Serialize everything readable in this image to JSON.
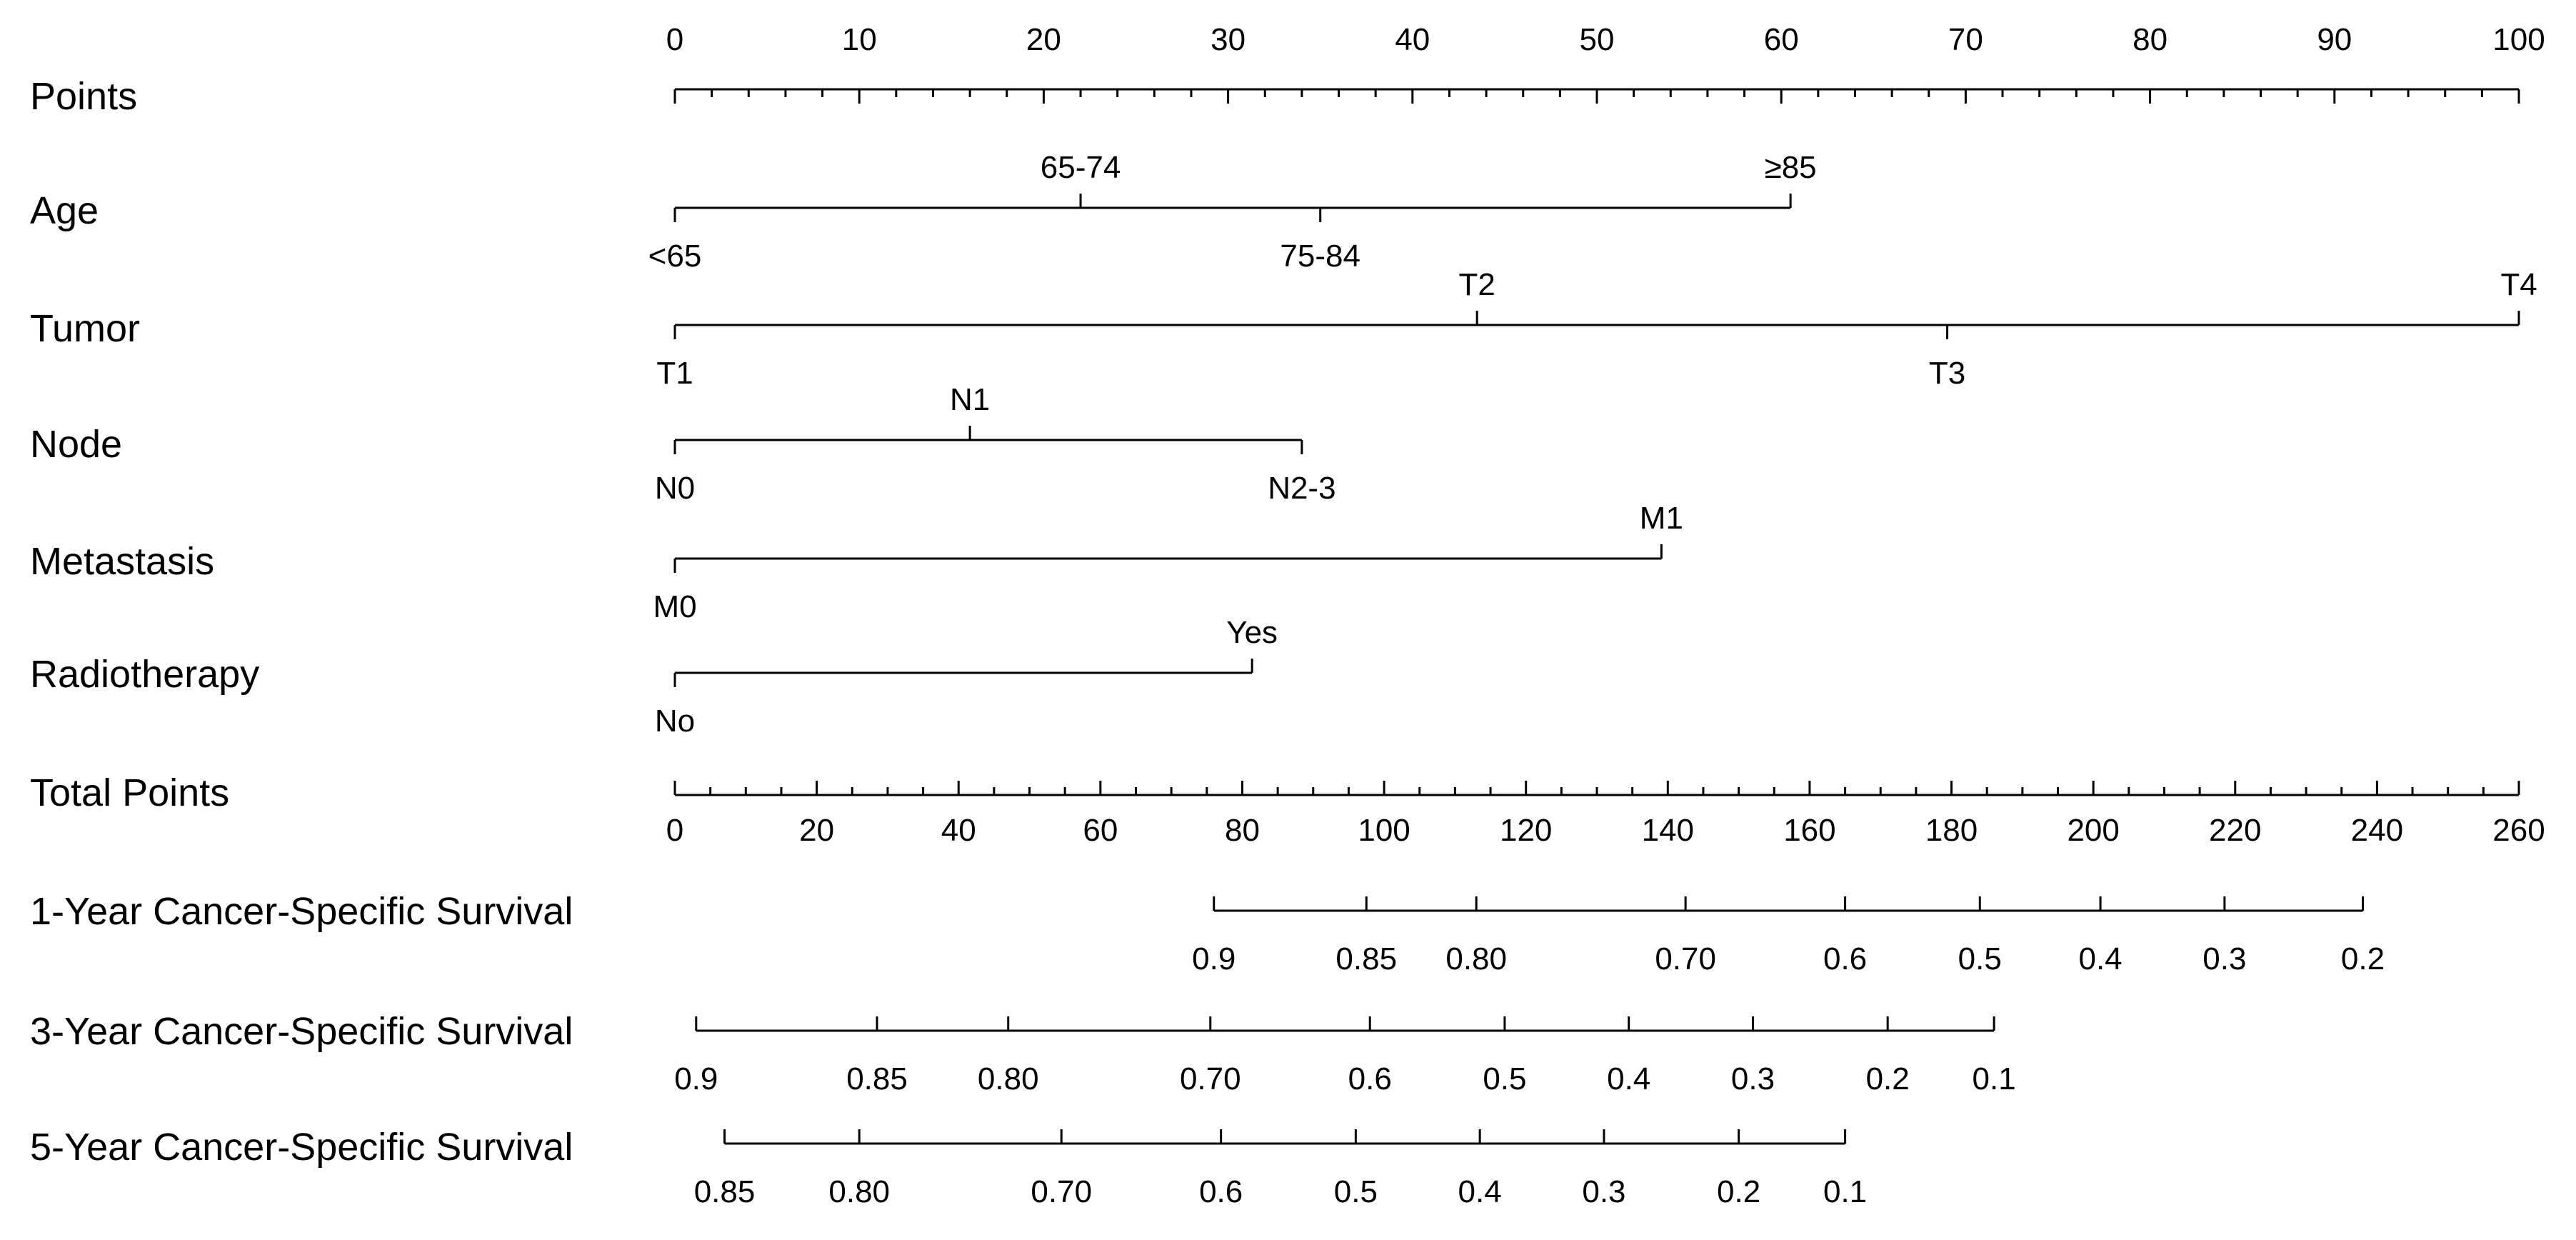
{
  "chart_data": {
    "type": "nomogram",
    "rows": [
      {
        "key": "points",
        "label": "Points",
        "kind": "scale",
        "min": 0,
        "max": 100,
        "major_ticks": [
          0,
          10,
          20,
          30,
          40,
          50,
          60,
          70,
          80,
          90,
          100
        ],
        "minor_step": 2,
        "tick_labels": [
          "0",
          "10",
          "20",
          "30",
          "40",
          "50",
          "60",
          "70",
          "80",
          "90",
          "100"
        ],
        "label_side": "above"
      },
      {
        "key": "age",
        "label": "Age",
        "kind": "factor",
        "levels": [
          {
            "label": "<65",
            "points": 0,
            "label_side": "below"
          },
          {
            "label": "65-74",
            "points": 22,
            "label_side": "above"
          },
          {
            "label": "75-84",
            "points": 35,
            "label_side": "below"
          },
          {
            "label": "≥85",
            "points": 60.5,
            "label_side": "above"
          }
        ]
      },
      {
        "key": "tumor",
        "label": "Tumor",
        "kind": "factor",
        "levels": [
          {
            "label": "T1",
            "points": 0,
            "label_side": "below"
          },
          {
            "label": "T2",
            "points": 43.5,
            "label_side": "above"
          },
          {
            "label": "T3",
            "points": 69,
            "label_side": "below"
          },
          {
            "label": "T4",
            "points": 100,
            "label_side": "above"
          }
        ]
      },
      {
        "key": "node",
        "label": "Node",
        "kind": "factor",
        "levels": [
          {
            "label": "N0",
            "points": 0,
            "label_side": "below"
          },
          {
            "label": "N1",
            "points": 16,
            "label_side": "above"
          },
          {
            "label": "N2-3",
            "points": 34,
            "label_side": "below"
          }
        ]
      },
      {
        "key": "metastasis",
        "label": "Metastasis",
        "kind": "factor",
        "levels": [
          {
            "label": "M0",
            "points": 0,
            "label_side": "below"
          },
          {
            "label": "M1",
            "points": 53.5,
            "label_side": "above"
          }
        ]
      },
      {
        "key": "radiotherapy",
        "label": "Radiotherapy",
        "kind": "factor",
        "levels": [
          {
            "label": "No",
            "points": 0,
            "label_side": "below"
          },
          {
            "label": "Yes",
            "points": 31.3,
            "label_side": "above"
          }
        ]
      },
      {
        "key": "total_points",
        "label": "Total Points",
        "kind": "scale",
        "min": 0,
        "max": 260,
        "major_ticks": [
          0,
          20,
          40,
          60,
          80,
          100,
          120,
          140,
          160,
          180,
          200,
          220,
          240,
          260
        ],
        "minor_step": 5,
        "tick_labels": [
          "0",
          "20",
          "40",
          "60",
          "80",
          "100",
          "120",
          "140",
          "160",
          "180",
          "200",
          "220",
          "240",
          "260"
        ],
        "label_side": "below"
      },
      {
        "key": "survival_1y",
        "label": "1-Year Cancer-Specific Survival",
        "kind": "probability",
        "ticks": [
          {
            "label": "0.9",
            "total_points": 76
          },
          {
            "label": "0.85",
            "total_points": 97.5
          },
          {
            "label": "0.80",
            "total_points": 113
          },
          {
            "label": "0.70",
            "total_points": 142.5
          },
          {
            "label": "0.6",
            "total_points": 165
          },
          {
            "label": "0.5",
            "total_points": 184
          },
          {
            "label": "0.4",
            "total_points": 201
          },
          {
            "label": "0.3",
            "total_points": 218.5
          },
          {
            "label": "0.2",
            "total_points": 238
          }
        ]
      },
      {
        "key": "survival_3y",
        "label": "3-Year Cancer-Specific Survival",
        "kind": "probability",
        "ticks": [
          {
            "label": "0.9",
            "total_points": 3
          },
          {
            "label": "0.85",
            "total_points": 28.5
          },
          {
            "label": "0.80",
            "total_points": 47
          },
          {
            "label": "0.70",
            "total_points": 75.5
          },
          {
            "label": "0.6",
            "total_points": 98
          },
          {
            "label": "0.5",
            "total_points": 117
          },
          {
            "label": "0.4",
            "total_points": 134.5
          },
          {
            "label": "0.3",
            "total_points": 152
          },
          {
            "label": "0.2",
            "total_points": 171
          },
          {
            "label": "0.1",
            "total_points": 186
          }
        ]
      },
      {
        "key": "survival_5y",
        "label": "5-Year Cancer-Specific Survival",
        "kind": "probability",
        "ticks": [
          {
            "label": "0.85",
            "total_points": 7
          },
          {
            "label": "0.80",
            "total_points": 26
          },
          {
            "label": "0.70",
            "total_points": 54.5
          },
          {
            "label": "0.6",
            "total_points": 77
          },
          {
            "label": "0.5",
            "total_points": 96
          },
          {
            "label": "0.4",
            "total_points": 113.5
          },
          {
            "label": "0.3",
            "total_points": 131
          },
          {
            "label": "0.2",
            "total_points": 150
          },
          {
            "label": "0.1",
            "total_points": 165
          }
        ]
      }
    ]
  }
}
